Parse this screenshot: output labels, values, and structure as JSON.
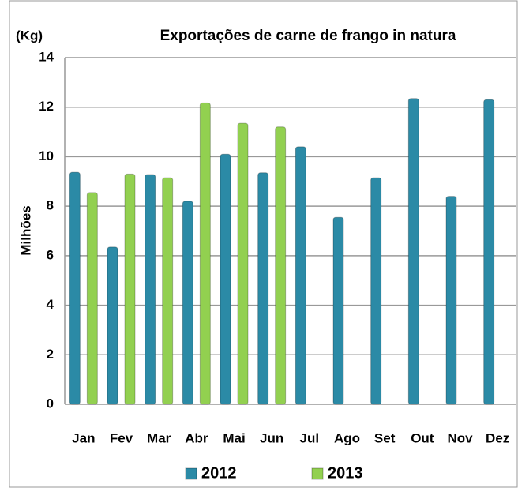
{
  "chart_data": {
    "type": "bar",
    "title": "Exportações de carne de frango in natura",
    "unit_label": "(Kg)",
    "y_label": "Milhões",
    "categories": [
      "Jan",
      "Fev",
      "Mar",
      "Abr",
      "Mai",
      "Jun",
      "Jul",
      "Ago",
      "Set",
      "Out",
      "Nov",
      "Dez"
    ],
    "series": [
      {
        "name": "2012",
        "color": "#2b8aa6",
        "values": [
          9.37,
          6.35,
          9.28,
          8.2,
          10.1,
          9.35,
          10.4,
          7.55,
          9.15,
          12.35,
          8.4,
          12.3
        ]
      },
      {
        "name": "2013",
        "color": "#92d050",
        "values": [
          8.55,
          9.3,
          9.15,
          12.17,
          11.35,
          11.2,
          null,
          null,
          null,
          null,
          null,
          null
        ]
      }
    ],
    "ylim": [
      0,
      14
    ],
    "yticks": [
      0,
      2,
      4,
      6,
      8,
      10,
      12,
      14
    ],
    "grid": true,
    "legend": "bottom"
  }
}
